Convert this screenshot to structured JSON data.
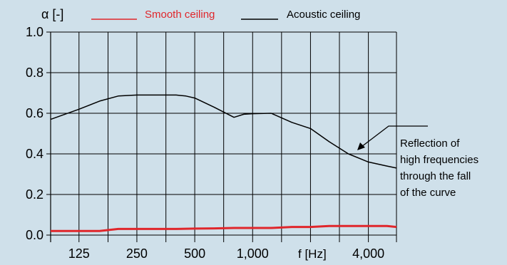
{
  "chart_data": {
    "type": "line",
    "ylabel": "α [-]",
    "xlabel": "f [Hz]",
    "x_scale": "log",
    "x_range": [
      89,
      5600
    ],
    "ylim": [
      0,
      1.0
    ],
    "y_ticks": [
      0.0,
      0.2,
      0.4,
      0.6,
      0.8,
      1.0
    ],
    "y_tick_labels": [
      "0.0",
      "0.2",
      "0.4",
      "0.6",
      "0.8",
      "1.0"
    ],
    "x_ticks": [
      {
        "value": 125,
        "label": "125"
      },
      {
        "value": 250,
        "label": "250"
      },
      {
        "value": 500,
        "label": "500"
      },
      {
        "value": 1000,
        "label": "1,000"
      },
      {
        "value": 4000,
        "label": "4,000"
      }
    ],
    "x_gridlines": [
      125,
      177,
      250,
      354,
      500,
      707,
      1000,
      1414,
      2000,
      2828,
      4000
    ],
    "grid": true,
    "legend_position": "top",
    "series": [
      {
        "name": "Smooth ceiling",
        "color": "#e0262b",
        "x": [
          89,
          125,
          160,
          200,
          250,
          315,
          400,
          500,
          630,
          800,
          1000,
          1250,
          1600,
          2000,
          2500,
          3150,
          4000,
          5000,
          5600
        ],
        "y": [
          0.02,
          0.02,
          0.02,
          0.03,
          0.03,
          0.03,
          0.03,
          0.032,
          0.033,
          0.035,
          0.035,
          0.035,
          0.04,
          0.04,
          0.045,
          0.045,
          0.045,
          0.045,
          0.04
        ]
      },
      {
        "name": "Acoustic ceiling",
        "color": "#000000",
        "x": [
          89,
          125,
          160,
          200,
          250,
          315,
          400,
          450,
          500,
          630,
          800,
          900,
          1000,
          1250,
          1600,
          2000,
          2500,
          3150,
          4000,
          5000,
          5600
        ],
        "y": [
          0.57,
          0.62,
          0.66,
          0.685,
          0.69,
          0.69,
          0.69,
          0.685,
          0.675,
          0.63,
          0.58,
          0.595,
          0.598,
          0.6,
          0.555,
          0.525,
          0.46,
          0.4,
          0.36,
          0.34,
          0.33
        ]
      }
    ],
    "annotation": {
      "lines": [
        "Reflection of",
        "high frequencies",
        "through the fall",
        "of the curve"
      ],
      "arrow_target": {
        "x": 2900,
        "y": 0.415
      }
    }
  }
}
